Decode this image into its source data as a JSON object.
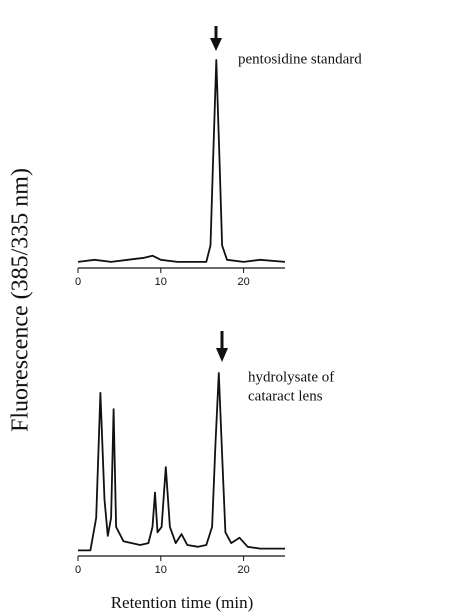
{
  "chart_data": [
    {
      "type": "line",
      "y_label": "Fluorescence (385/335 nm)",
      "annotation": "pentosidine standard",
      "x": [
        0,
        2,
        4,
        6,
        8,
        9,
        10,
        12,
        14,
        15.5,
        16,
        16.3,
        16.7,
        17.1,
        17.4,
        18,
        20,
        22,
        25
      ],
      "values": [
        2,
        3,
        2,
        3,
        4,
        5,
        3,
        2,
        2,
        2,
        10,
        50,
        100,
        50,
        10,
        3,
        2,
        3,
        2
      ],
      "color": "#111111",
      "xlim": [
        0,
        25
      ],
      "ylim": [
        0,
        100
      ],
      "xticks": [
        0,
        10,
        20
      ]
    },
    {
      "type": "line",
      "x_label": "Retention time (min)",
      "annotation": [
        "hydrolysate of",
        "cataract lens"
      ],
      "x": [
        0,
        1.5,
        2.2,
        2.7,
        3.2,
        3.6,
        4.0,
        4.3,
        4.6,
        5.5,
        6.5,
        7.5,
        8.5,
        9.0,
        9.3,
        9.6,
        10.1,
        10.6,
        11.1,
        11.8,
        12.5,
        13.2,
        14.5,
        15.5,
        16.2,
        16.6,
        17,
        17.4,
        17.8,
        18.5,
        19.5,
        20.5,
        22,
        25
      ],
      "values": [
        2,
        2,
        20,
        89,
        30,
        10,
        20,
        80,
        15,
        7,
        6,
        5,
        6,
        15,
        34,
        12,
        15,
        48,
        15,
        6,
        11,
        5,
        4,
        5,
        15,
        60,
        100,
        55,
        12,
        6,
        9,
        4,
        3,
        3
      ],
      "color": "#111111",
      "xlim": [
        0,
        25
      ],
      "ylim": [
        0,
        100
      ],
      "xticks": [
        0,
        10,
        20
      ]
    }
  ]
}
